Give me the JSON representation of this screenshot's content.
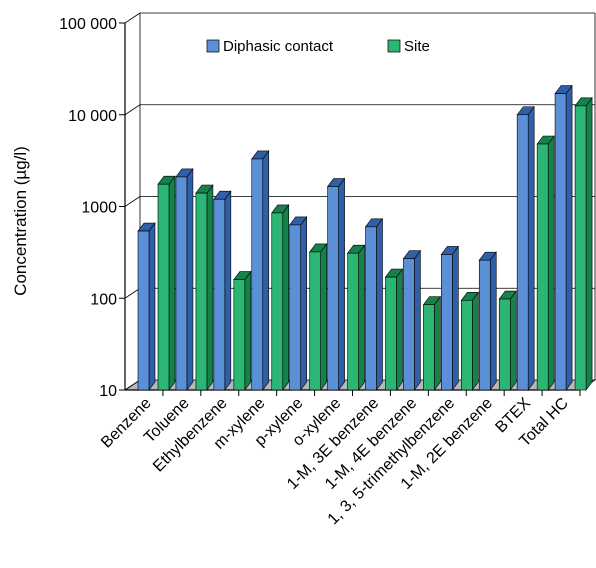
{
  "chart_data": {
    "type": "bar",
    "ylabel": "Concentration (µg/l)",
    "yscale": "log",
    "ylim": [
      10,
      100000
    ],
    "yticks": [
      10,
      100,
      1000,
      10000,
      100000
    ],
    "ytick_labels": [
      "10",
      "100",
      "1000",
      "10 000",
      "100 000"
    ],
    "grid": true,
    "legend_position": "top",
    "categories": [
      "Benzene",
      "Toluene",
      "Ethylbenzene",
      "m-xylene",
      "p-xylene",
      "o-xylene",
      "1-M, 3E benzene",
      "1-M, 4E benzene",
      "1, 3, 5-trimethylbenzene",
      "1-M, 2E benzene",
      "BTEX",
      "Total HC"
    ],
    "series": [
      {
        "name": "Diphasic contact",
        "color": "#5b8fd6",
        "side_color": "#2f5fa8",
        "values": [
          540,
          2100,
          1200,
          3300,
          630,
          1650,
          600,
          270,
          300,
          260,
          10000,
          17000
        ]
      },
      {
        "name": "Site",
        "color": "#2bb673",
        "side_color": "#15824c",
        "values": [
          1750,
          1400,
          160,
          850,
          320,
          310,
          170,
          85,
          95,
          98,
          4800,
          12500
        ]
      }
    ]
  }
}
